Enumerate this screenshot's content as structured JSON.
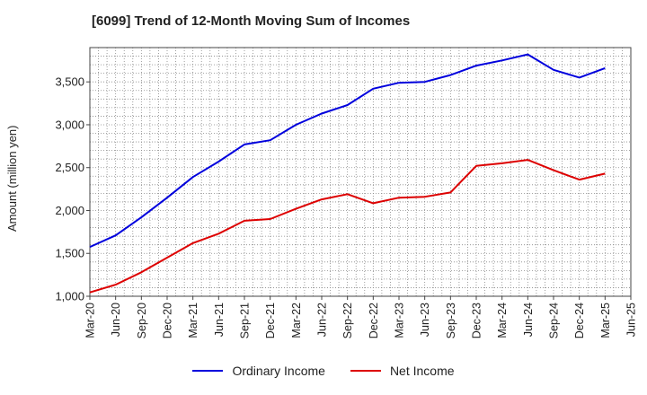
{
  "chart_data": {
    "type": "line",
    "title": "[6099]  Trend of 12-Month Moving Sum of Incomes",
    "xlabel": "",
    "ylabel": "Amount (million yen)",
    "ylim": [
      1000,
      3900
    ],
    "yticks": [
      1000,
      1500,
      2000,
      2500,
      3000,
      3500
    ],
    "ytick_labels": [
      "1,000",
      "1,500",
      "2,000",
      "2,500",
      "3,000",
      "3,500"
    ],
    "categories": [
      "Mar-20",
      "Jun-20",
      "Sep-20",
      "Dec-20",
      "Mar-21",
      "Jun-21",
      "Sep-21",
      "Dec-21",
      "Mar-22",
      "Jun-22",
      "Sep-22",
      "Dec-22",
      "Mar-23",
      "Jun-23",
      "Sep-23",
      "Dec-23",
      "Mar-24",
      "Jun-24",
      "Sep-24",
      "Dec-24",
      "Mar-25",
      "Jun-25"
    ],
    "series": [
      {
        "name": "Ordinary Income",
        "color": "#0000dd",
        "values": [
          1575,
          1710,
          1920,
          2150,
          2390,
          2570,
          2770,
          2820,
          3000,
          3130,
          3230,
          3420,
          3490,
          3500,
          3580,
          3690,
          3750,
          3820,
          3640,
          3550,
          3660,
          null
        ]
      },
      {
        "name": "Net Income",
        "color": "#dd0000",
        "values": [
          1045,
          1135,
          1280,
          1450,
          1620,
          1730,
          1880,
          1900,
          2020,
          2130,
          2190,
          2085,
          2150,
          2160,
          2210,
          2520,
          2550,
          2590,
          2470,
          2360,
          2430,
          null
        ]
      }
    ],
    "grid": true,
    "legend_position": "bottom-center"
  }
}
